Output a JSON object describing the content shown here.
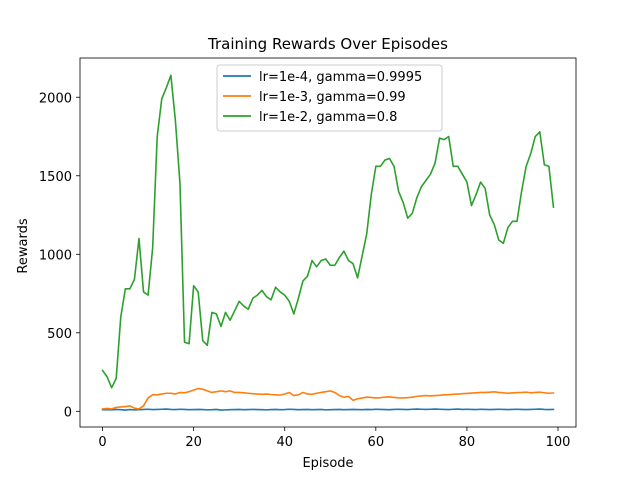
{
  "chart_data": {
    "type": "line",
    "title": "Training Rewards Over Episodes",
    "xlabel": "Episode",
    "ylabel": "Rewards",
    "xlim": [
      -4.95,
      103.95
    ],
    "ylim": [
      -100,
      2250
    ],
    "xticks": [
      0,
      20,
      40,
      60,
      80,
      100
    ],
    "yticks": [
      0,
      500,
      1000,
      1500,
      2000
    ],
    "grid": false,
    "legend_position": "top-center",
    "x": [
      0,
      1,
      2,
      3,
      4,
      5,
      6,
      7,
      8,
      9,
      10,
      11,
      12,
      13,
      14,
      15,
      16,
      17,
      18,
      19,
      20,
      21,
      22,
      23,
      24,
      25,
      26,
      27,
      28,
      29,
      30,
      31,
      32,
      33,
      34,
      35,
      36,
      37,
      38,
      39,
      40,
      41,
      42,
      43,
      44,
      45,
      46,
      47,
      48,
      49,
      50,
      51,
      52,
      53,
      54,
      55,
      56,
      57,
      58,
      59,
      60,
      61,
      62,
      63,
      64,
      65,
      66,
      67,
      68,
      69,
      70,
      71,
      72,
      73,
      74,
      75,
      76,
      77,
      78,
      79,
      80,
      81,
      82,
      83,
      84,
      85,
      86,
      87,
      88,
      89,
      90,
      91,
      92,
      93,
      94,
      95,
      96,
      97,
      98,
      99
    ],
    "series": [
      {
        "name": "lr=1e-4, gamma=0.9995",
        "color": "#1f77b4",
        "values": [
          10,
          11,
          9,
          12,
          10,
          8,
          11,
          9,
          10,
          12,
          13,
          11,
          12,
          13,
          14,
          12,
          11,
          13,
          12,
          10,
          11,
          12,
          11,
          9,
          10,
          12,
          8,
          9,
          10,
          11,
          12,
          10,
          11,
          12,
          11,
          10,
          9,
          11,
          12,
          10,
          11,
          13,
          12,
          10,
          11,
          12,
          10,
          11,
          12,
          9,
          10,
          11,
          12,
          10,
          11,
          12,
          11,
          10,
          12,
          11,
          13,
          12,
          11,
          10,
          12,
          13,
          12,
          11,
          13,
          14,
          13,
          12,
          13,
          14,
          13,
          12,
          11,
          13,
          14,
          12,
          13,
          12,
          11,
          13,
          12,
          11,
          12,
          13,
          12,
          11,
          12,
          13,
          12,
          11,
          12,
          13,
          14,
          12,
          11,
          12
        ]
      },
      {
        "name": "lr=1e-3, gamma=0.99",
        "color": "#ff7f0e",
        "values": [
          15,
          18,
          15,
          25,
          28,
          30,
          35,
          20,
          15,
          35,
          85,
          105,
          105,
          110,
          115,
          115,
          110,
          120,
          118,
          125,
          135,
          145,
          140,
          130,
          120,
          125,
          130,
          125,
          130,
          120,
          120,
          118,
          115,
          112,
          110,
          108,
          110,
          107,
          105,
          103,
          110,
          120,
          100,
          105,
          120,
          110,
          108,
          115,
          120,
          125,
          130,
          120,
          100,
          90,
          95,
          70,
          80,
          85,
          90,
          88,
          85,
          87,
          90,
          92,
          88,
          86,
          85,
          87,
          90,
          95,
          98,
          100,
          98,
          100,
          102,
          105,
          106,
          108,
          110,
          112,
          114,
          116,
          118,
          120,
          120,
          122,
          124,
          120,
          118,
          115,
          117,
          119,
          120,
          122,
          118,
          120,
          122,
          118,
          115,
          117
        ]
      },
      {
        "name": "lr=1e-2, gamma=0.8",
        "color": "#2ca02c",
        "values": [
          260,
          220,
          150,
          210,
          600,
          780,
          780,
          840,
          1100,
          760,
          740,
          1040,
          1750,
          1990,
          2060,
          2140,
          1850,
          1450,
          440,
          430,
          800,
          760,
          450,
          420,
          630,
          620,
          540,
          630,
          580,
          640,
          700,
          670,
          650,
          720,
          740,
          770,
          730,
          710,
          790,
          760,
          740,
          700,
          620,
          720,
          830,
          860,
          960,
          920,
          960,
          970,
          930,
          930,
          980,
          1020,
          960,
          940,
          850,
          990,
          1130,
          1380,
          1560,
          1560,
          1600,
          1610,
          1560,
          1400,
          1330,
          1230,
          1260,
          1360,
          1430,
          1470,
          1510,
          1580,
          1740,
          1730,
          1750,
          1560,
          1560,
          1510,
          1460,
          1310,
          1380,
          1460,
          1420,
          1250,
          1190,
          1090,
          1070,
          1170,
          1210,
          1210,
          1400,
          1560,
          1640,
          1750,
          1780,
          1570,
          1560,
          1300
        ]
      }
    ]
  }
}
